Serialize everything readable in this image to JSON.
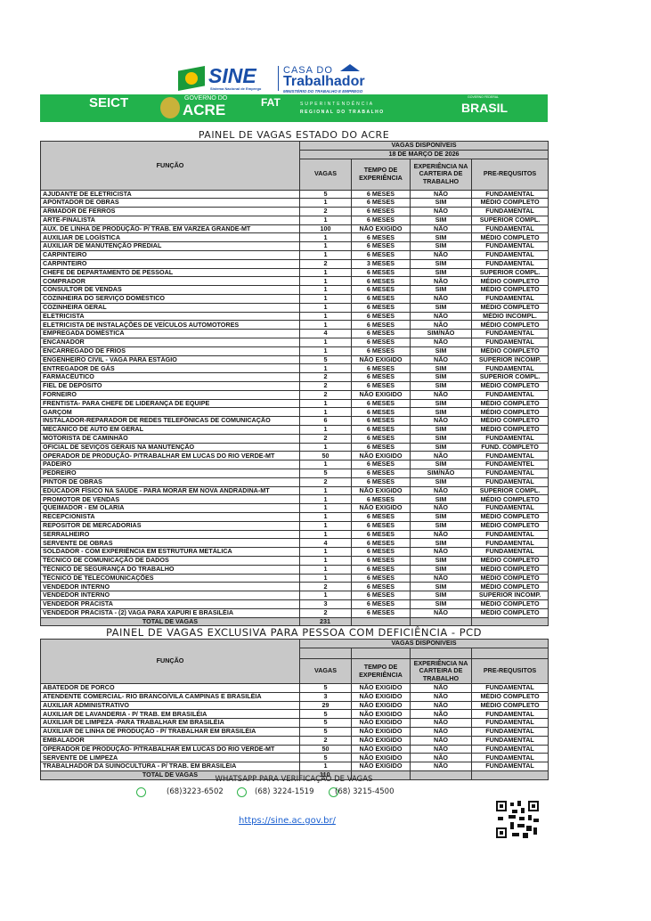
{
  "header": {
    "sine": "SINE",
    "sine_sub": "Sistema Nacional de Emprego",
    "casa": "CASA DO",
    "trabalhador": "Trabalhador",
    "ministerio": "MINISTÉRIO DO TRABALHO E EMPREGO",
    "banner": {
      "seict": "SEICT",
      "gov": "GOVERNO DO",
      "acre": "ACRE",
      "fat": "FAT",
      "super1": "SUPERINTENDÊNCIA",
      "super2": "REGIONAL DO TRABALHO",
      "brasil": "BRASIL",
      "gov_federal": "GOVERNO FEDERAL"
    },
    "brand_green": "#22b24c"
  },
  "main": {
    "title": "PAINEL DE VAGAS ESTADO DO ACRE",
    "group_header": "VAGAS DISPONÍVEIS",
    "date": "18 DE MARÇO DE 2026",
    "columns": [
      "FUNÇÃO",
      "VAGAS",
      "TEMPO DE EXPERIÊNCIA",
      "EXPERIÊNCIA NA CARTEIRA DE TRABALHO",
      "PRE-REQUSITOS"
    ],
    "rows": [
      [
        "AJUDANTE DE ELETRICISTA",
        "5",
        "6 MESES",
        "NÃO",
        "FUNDAMENTAL"
      ],
      [
        "APONTADOR DE OBRAS",
        "1",
        "6 MESES",
        "SIM",
        "MÉDIO COMPLETO"
      ],
      [
        "ARMADOR DE FERROS",
        "2",
        "6 MESES",
        "NÃO",
        "FUNDAMENTAL"
      ],
      [
        "ARTE-FINALISTA",
        "1",
        "6 MESES",
        "SIM",
        "SUPERIOR COMPL."
      ],
      [
        "AUX. DE LINHA DE PRODUÇÃO- P/ TRAB. EM VARZEA GRANDE-MT",
        "100",
        "NÃO EXIGIDO",
        "NÃO",
        "FUNDAMENTAL"
      ],
      [
        "AUXILIAR DE LOGÍSTICA",
        "1",
        "6 MESES",
        "SIM",
        "MÉDIO COMPLETO"
      ],
      [
        "AUXILIAR DE MANUTENÇÃO PREDIAL",
        "1",
        "6 MESES",
        "SIM",
        "FUNDAMENTAL"
      ],
      [
        "CARPINTEIRO",
        "1",
        "6 MESES",
        "NÃO",
        "FUNDAMENTAL"
      ],
      [
        "CARPINTEIRO",
        "2",
        "3 MESES",
        "SIM",
        "FUNDAMENTAL"
      ],
      [
        "CHEFE DE DEPARTAMENTO DE PESSOAL",
        "1",
        "6 MESES",
        "SIM",
        "SUPERIOR COMPL."
      ],
      [
        "COMPRADOR",
        "1",
        "6 MESES",
        "NÃO",
        "MÉDIO COMPLETO"
      ],
      [
        "CONSULTOR DE VENDAS",
        "1",
        "6 MESES",
        "SIM",
        "MÉDIO COMPLETO"
      ],
      [
        "COZINHEIRA DO SERVIÇO DOMÉSTICO",
        "1",
        "6 MESES",
        "NÃO",
        "FUNDAMENTAL"
      ],
      [
        "COZINHEIRA GERAL",
        "1",
        "6 MESES",
        "SIM",
        "MÉDIO COMPLETO"
      ],
      [
        "ELETRICISTA",
        "1",
        "6 MESES",
        "NÃO",
        "MÉDIO INCOMPL."
      ],
      [
        "ELETRICISTA DE INSTALAÇÕES DE VEÍCULOS AUTOMOTORES",
        "1",
        "6 MESES",
        "NÃO",
        "MÉDIO COMPLETO"
      ],
      [
        "EMPREGADA DOMÉSTICA",
        "4",
        "6 MESES",
        "SIM/NÃO",
        "FUNDAMENTAL"
      ],
      [
        "ENCANADOR",
        "1",
        "6 MESES",
        "NÃO",
        "FUNDAMENTAL"
      ],
      [
        "ENCARREGADO DE FRIOS",
        "1",
        "6 MESES",
        "SIM",
        "MÉDIO COMPLETO"
      ],
      [
        "ENGENHEIRO CIVIL - VAGA PARA ESTÁGIO",
        "5",
        "NÃO EXIGIDO",
        "NÃO",
        "SUPERIOR INCOMP."
      ],
      [
        "ENTREGADOR DE GÁS",
        "1",
        "6 MESES",
        "SIM",
        "FUNDAMENTAL"
      ],
      [
        "FARMACÊUTICO",
        "2",
        "6 MESES",
        "SIM",
        "SUPERIOR COMPL."
      ],
      [
        "FIEL DE DEPÓSITO",
        "2",
        "6 MESES",
        "SIM",
        "MÉDIO COMPLETO"
      ],
      [
        "FORNEIRO",
        "2",
        "NÃO EXIGIDO",
        "NÃO",
        "FUNDAMENTAL"
      ],
      [
        "FRENTISTA- PARA CHEFE DE LIDERANÇA DE EQUIPE",
        "1",
        "6 MESES",
        "SIM",
        "MÉDIO COMPLETO"
      ],
      [
        "GARÇOM",
        "1",
        "6 MESES",
        "SIM",
        "MÉDIO COMPLETO"
      ],
      [
        "INSTALADOR-REPARADOR DE REDES TELEFÔNICAS  DE COMUNICAÇÃO",
        "6",
        "6 MESES",
        "NÃO",
        "MÉDIO COMPLETO"
      ],
      [
        "MECÂNICO DE AUTO EM GERAL",
        "1",
        "6 MESES",
        "SIM",
        "MÉDIO COMPLETO"
      ],
      [
        "MOTORISTA DE CAMINHÃO",
        "2",
        "6 MESES",
        "SIM",
        "FUNDAMENTAL"
      ],
      [
        "OFICIAL DE SEVIÇOS GERAIS NA MANUTENÇÃO",
        "1",
        "6 MESES",
        "SIM",
        "FUND. COMPLETO"
      ],
      [
        "OPERADOR DE PRODUÇÃO- P/TRABALHAR EM LUCAS DO RIO VERDE-MT",
        "50",
        "NÃO EXIGIDO",
        "NÃO",
        "FUNDAMENTAL"
      ],
      [
        "PADEIRO",
        "1",
        "6 MESES",
        "SIM",
        "FUNDAMENTEL"
      ],
      [
        "PEDREIRO",
        "5",
        "6 MESES",
        "SIM/NÃO",
        "FUNDAMENTAL"
      ],
      [
        "PINTOR DE OBRAS",
        "2",
        "6 MESES",
        "SIM",
        "FUNDAMENTAL"
      ],
      [
        "EDUCADOR FÍSICO NA SAÚDE - PARA MORAR EM NOVA ANDRADINA-MT",
        "1",
        "NÃO EXIGIDO",
        "NÃO",
        "SUPERIOR COMPL."
      ],
      [
        "PROMOTOR DE VENDAS",
        "1",
        "6 MESES",
        "SIM",
        "MÉDIO COMPLETO"
      ],
      [
        "QUEIMADOR - EM OLARIA",
        "1",
        "NÃO EXIGIDO",
        "NÃO",
        "FUNDAMENTAL"
      ],
      [
        "RECEPCIONISTA",
        "1",
        "6 MESES",
        "SIM",
        "MÉDIO COMPLETO"
      ],
      [
        "REPOSITOR DE MERCADORIAS",
        "1",
        "6 MESES",
        "SIM",
        "MÉDIO COMPLETO"
      ],
      [
        "SERRALHEIRO",
        "1",
        "6 MESES",
        "NÃO",
        "FUNDAMENTAL"
      ],
      [
        "SERVENTE DE OBRAS",
        "4",
        "6 MESES",
        "SIM",
        "FUNDAMENTAL"
      ],
      [
        "SOLDADOR -  COM EXPERIÊNCIA EM ESTRUTURA METÁLICA",
        "1",
        "6 MESES",
        "NÃO",
        "FUNDAMENTAL"
      ],
      [
        "TÉCNICO DE COMUNICAÇÃO DE DADOS",
        "1",
        "6 MESES",
        "SIM",
        "MÉDIO COMPLETO"
      ],
      [
        "TÉCNICO DE SEGURANÇA DO TRABALHO",
        "1",
        "6 MESES",
        "SIM",
        "MÉDIO COMPLETO"
      ],
      [
        "TÉCNICO DE TELECOMUNICAÇÕES",
        "1",
        "6 MESES",
        "NÃO",
        "MÉDIO COMPLETO"
      ],
      [
        "VENDEDOR INTERNO",
        "2",
        "6 MESES",
        "SIM",
        "MÉDIO COMPLETO"
      ],
      [
        "VENDEDOR INTERNO",
        "1",
        "6 MESES",
        "SIM",
        "SUPERIOR INCOMP."
      ],
      [
        "VENDEDOR PRACISTA",
        "3",
        "6 MESES",
        "SIM",
        "MÉDIO COMPLETO"
      ],
      [
        "VENDEDOR PRACISTA - (2) VAGA PARA XAPURI E BRASILÉIA",
        "2",
        "6 MESES",
        "NÃO",
        "MÉDIO COMPLETO"
      ]
    ],
    "total_label": "TOTAL DE VAGAS",
    "total": "231"
  },
  "pcd": {
    "title": "PAINEL DE VAGAS EXCLUSIVA PARA PESSOA COM DEFICIÊNCIA - PCD",
    "group_header": "VAGAS DISPONIVEIS",
    "columns": [
      "FUNÇÃO",
      "VAGAS",
      "TEMPO DE EXPERIÊNCIA",
      "EXPERIÊNCIA NA CARTEIRA DE TRABALHO",
      "PRE-REQUSITOS"
    ],
    "rows": [
      [
        "ABATEDOR DE PORCO",
        "5",
        "NÃO EXIGIDO",
        "NÃO",
        "FUNDAMENTAL"
      ],
      [
        "ATENDENTE COMERCIAL- RIO BRANCO/VILA CAMPINAS E BRASILÉIA",
        "3",
        "NÃO EXIGIDO",
        "NÃO",
        "MÉDIO COMPLETO"
      ],
      [
        "AUXILIAR ADMINISTRATIVO",
        "29",
        "NÃO EXIGIDO",
        "NÃO",
        "MÉDIO COMPLETO"
      ],
      [
        "AUXILIAR DE LAVANDERIA - P/ TRAB. EM BRASILÉIA",
        "5",
        "NÃO EXIGIDO",
        "NÃO",
        "FUNDAMENTAL"
      ],
      [
        "AUXILIAR DE LIMPEZA -PARA TRABALHAR EM BRASILÉIA",
        "5",
        "NÃO EXIGIDO",
        "NÃO",
        "FUNDAMENTAL"
      ],
      [
        "AUXILIAR DE LINHA DE PRODUÇÃO - P/ TRABALHAR EM BRASILÉIA",
        "5",
        "NÃO EXIGIDO",
        "NÃO",
        "FUNDAMENTAL"
      ],
      [
        "EMBALADOR",
        "2",
        "NÃO EXIGIDO",
        "NÃO",
        "FUNDAMENTAL"
      ],
      [
        "OPERADOR DE PRODUÇÃO- P/TRABALHAR EM LUCAS DO RIO VERDE-MT",
        "50",
        "NÃO EXIGIDO",
        "NÃO",
        "FUNDAMENTAL"
      ],
      [
        "SERVENTE DE LIMPEZA",
        "5",
        "NÃO EXIGIDO",
        "NÃO",
        "FUNDAMENTAL"
      ],
      [
        "TRABALHADOR DA SUINOCULTURA - P/ TRAB. EM BRASILÉIA",
        "1",
        "NÃO EXIGIDO",
        "NÃO",
        "FUNDAMENTAL"
      ]
    ],
    "total_label": "TOTAL DE VAGAS",
    "total": "110"
  },
  "footer": {
    "whatsapp_title": "WHATSAPP PARA VERIFICAÇÃO DE VAGAS",
    "phones": [
      "(68)3223-6502",
      "(68) 3224-1519",
      "(68) 3215-4500"
    ],
    "link": "https://sine.ac.gov.br/ ",
    "whatsapp_color": "#2fb34a"
  }
}
